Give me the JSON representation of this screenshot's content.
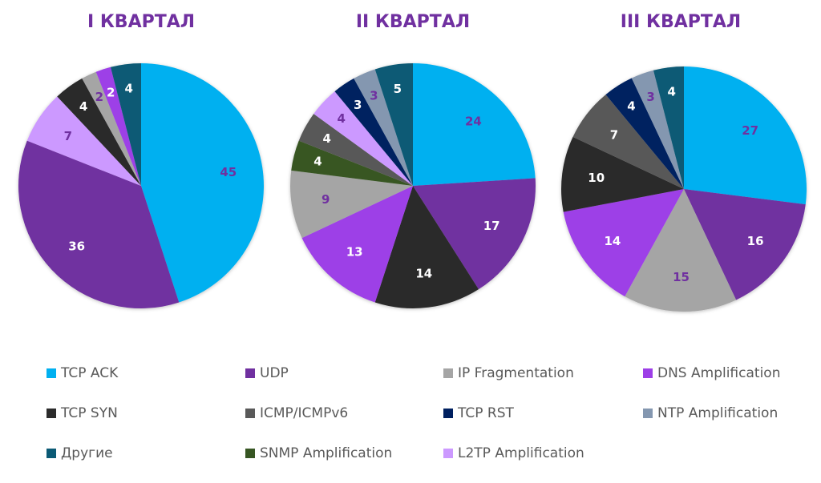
{
  "chart_data": [
    {
      "type": "pie",
      "title": "I КВАРТАЛ",
      "slices": [
        {
          "category": "TCP ACK",
          "value": 45
        },
        {
          "category": "UDP",
          "value": 36
        },
        {
          "category": "L2TP Amplification",
          "value": 7
        },
        {
          "category": "TCP SYN",
          "value": 4
        },
        {
          "category": "IP Fragmentation",
          "value": 2
        },
        {
          "category": "DNS Amplification",
          "value": 2
        },
        {
          "category": "Другие",
          "value": 4
        }
      ]
    },
    {
      "type": "pie",
      "title": "II КВАРТАЛ",
      "slices": [
        {
          "category": "TCP ACK",
          "value": 24
        },
        {
          "category": "UDP",
          "value": 17
        },
        {
          "category": "TCP SYN",
          "value": 14
        },
        {
          "category": "DNS Amplification",
          "value": 13
        },
        {
          "category": "IP Fragmentation",
          "value": 9
        },
        {
          "category": "SNMP Amplification",
          "value": 4
        },
        {
          "category": "ICMP/ICMPv6",
          "value": 4
        },
        {
          "category": "L2TP Amplification",
          "value": 4
        },
        {
          "category": "TCP RST",
          "value": 3
        },
        {
          "category": "NTP Amplification",
          "value": 3
        },
        {
          "category": "Другие",
          "value": 5
        }
      ]
    },
    {
      "type": "pie",
      "title": "III КВАРТАЛ",
      "slices": [
        {
          "category": "TCP ACK",
          "value": 27
        },
        {
          "category": "UDP",
          "value": 16
        },
        {
          "category": "IP Fragmentation",
          "value": 15
        },
        {
          "category": "DNS Amplification",
          "value": 14
        },
        {
          "category": "TCP SYN",
          "value": 10
        },
        {
          "category": "ICMP/ICMPv6",
          "value": 7
        },
        {
          "category": "TCP RST",
          "value": 4
        },
        {
          "category": "NTP Amplification",
          "value": 3
        },
        {
          "category": "Другие",
          "value": 4
        }
      ]
    }
  ],
  "legend": {
    "placement": "bottom",
    "items": [
      {
        "label": "TCP ACK",
        "color": "#00b0f0",
        "label_color": "#7030a0"
      },
      {
        "label": "UDP",
        "color": "#7030a0",
        "label_color": "#ffffff"
      },
      {
        "label": "IP Fragmentation",
        "color": "#a5a5a5",
        "label_color": "#7030a0"
      },
      {
        "label": "DNS Amplification",
        "color": "#9d3fe7",
        "label_color": "#ffffff"
      },
      {
        "label": "TCP SYN",
        "color": "#2b2b2b",
        "label_color": "#ffffff"
      },
      {
        "label": "ICMP/ICMPv6",
        "color": "#595959",
        "label_color": "#ffffff"
      },
      {
        "label": "TCP RST",
        "color": "#002060",
        "label_color": "#ffffff"
      },
      {
        "label": "NTP Amplification",
        "color": "#8497b0",
        "label_color": "#7030a0"
      },
      {
        "label": "Другие",
        "color": "#0b5a75",
        "label_color": "#ffffff"
      },
      {
        "label": "SNMP Amplification",
        "color": "#375623",
        "label_color": "#ffffff"
      },
      {
        "label": "L2TP Amplification",
        "color": "#cc99ff",
        "label_color": "#7030a0"
      }
    ]
  },
  "title_color": "#7030a0"
}
